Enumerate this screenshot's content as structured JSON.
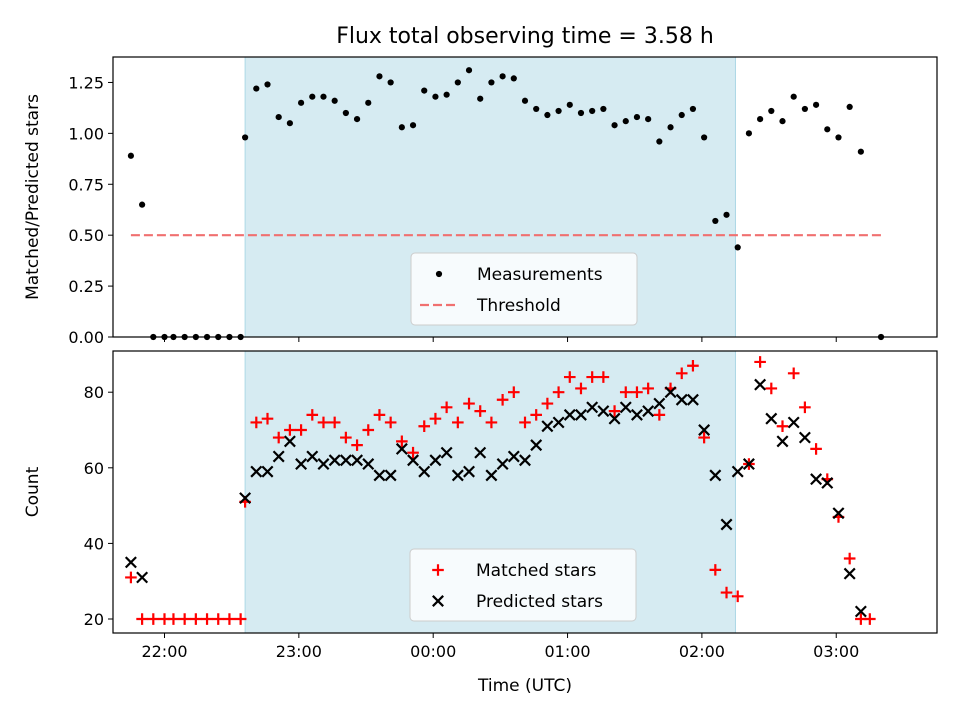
{
  "chart_data": [
    {
      "type": "scatter",
      "title": "Flux total observing time = 3.58 h",
      "ylabel": "Matched/Predicted stars",
      "xlabel": "",
      "ylim": [
        0,
        1.375
      ],
      "yticks": [
        "0.00",
        "0.25",
        "0.50",
        "0.75",
        "1.00",
        "1.25"
      ],
      "grid": false,
      "legend_position": "bottom-center",
      "shaded_span": [
        "22:36",
        "02:15"
      ],
      "series": [
        {
          "name": "Measurements",
          "marker": "dot",
          "color": "#000000",
          "points": [
            [
              "21:45",
              0.89
            ],
            [
              "21:50",
              0.65
            ],
            [
              "21:55",
              0.0
            ],
            [
              "22:00",
              0.0
            ],
            [
              "22:04",
              0.0
            ],
            [
              "22:09",
              0.0
            ],
            [
              "22:14",
              0.0
            ],
            [
              "22:19",
              0.0
            ],
            [
              "22:24",
              0.0
            ],
            [
              "22:29",
              0.0
            ],
            [
              "22:34",
              0.0
            ],
            [
              "22:36",
              0.98
            ],
            [
              "22:41",
              1.22
            ],
            [
              "22:46",
              1.24
            ],
            [
              "22:51",
              1.08
            ],
            [
              "22:56",
              1.05
            ],
            [
              "23:01",
              1.15
            ],
            [
              "23:06",
              1.18
            ],
            [
              "23:11",
              1.18
            ],
            [
              "23:16",
              1.16
            ],
            [
              "23:21",
              1.1
            ],
            [
              "23:26",
              1.07
            ],
            [
              "23:31",
              1.15
            ],
            [
              "23:36",
              1.28
            ],
            [
              "23:41",
              1.25
            ],
            [
              "23:46",
              1.03
            ],
            [
              "23:51",
              1.04
            ],
            [
              "23:56",
              1.21
            ],
            [
              "00:01",
              1.18
            ],
            [
              "00:06",
              1.19
            ],
            [
              "00:11",
              1.25
            ],
            [
              "00:16",
              1.31
            ],
            [
              "00:21",
              1.17
            ],
            [
              "00:26",
              1.25
            ],
            [
              "00:31",
              1.28
            ],
            [
              "00:36",
              1.27
            ],
            [
              "00:41",
              1.16
            ],
            [
              "00:46",
              1.12
            ],
            [
              "00:51",
              1.09
            ],
            [
              "00:56",
              1.11
            ],
            [
              "01:01",
              1.14
            ],
            [
              "01:06",
              1.1
            ],
            [
              "01:11",
              1.11
            ],
            [
              "01:16",
              1.12
            ],
            [
              "01:21",
              1.04
            ],
            [
              "01:26",
              1.06
            ],
            [
              "01:31",
              1.08
            ],
            [
              "01:36",
              1.07
            ],
            [
              "01:41",
              0.96
            ],
            [
              "01:46",
              1.03
            ],
            [
              "01:51",
              1.09
            ],
            [
              "01:56",
              1.12
            ],
            [
              "02:01",
              0.98
            ],
            [
              "02:06",
              0.57
            ],
            [
              "02:11",
              0.6
            ],
            [
              "02:16",
              0.44
            ],
            [
              "02:21",
              1.0
            ],
            [
              "02:26",
              1.07
            ],
            [
              "02:31",
              1.11
            ],
            [
              "02:36",
              1.06
            ],
            [
              "02:41",
              1.18
            ],
            [
              "02:46",
              1.12
            ],
            [
              "02:51",
              1.14
            ],
            [
              "02:56",
              1.02
            ],
            [
              "03:01",
              0.98
            ],
            [
              "03:06",
              1.13
            ],
            [
              "03:11",
              0.91
            ],
            [
              "03:20",
              0.0
            ]
          ]
        },
        {
          "name": "Threshold",
          "line": "dashed",
          "color": "#f07070",
          "points": [
            [
              "21:45",
              0.5
            ],
            [
              "03:20",
              0.5
            ]
          ]
        }
      ]
    },
    {
      "type": "scatter",
      "title": "",
      "xlabel": "Time (UTC)",
      "ylabel": "Count",
      "ylim": [
        16.3,
        90.9
      ],
      "yticks": [
        "20",
        "40",
        "60",
        "80"
      ],
      "xticks": [
        "22:00",
        "23:00",
        "00:00",
        "01:00",
        "02:00",
        "03:00"
      ],
      "grid": false,
      "legend_position": "bottom-center",
      "shaded_span": [
        "22:36",
        "02:15"
      ],
      "series": [
        {
          "name": "Matched stars",
          "marker": "plus",
          "color": "#ff0000",
          "points": [
            [
              "21:45",
              31
            ],
            [
              "21:50",
              20
            ],
            [
              "21:55",
              20
            ],
            [
              "22:00",
              20
            ],
            [
              "22:04",
              20
            ],
            [
              "22:09",
              20
            ],
            [
              "22:14",
              20
            ],
            [
              "22:19",
              20
            ],
            [
              "22:24",
              20
            ],
            [
              "22:29",
              20
            ],
            [
              "22:34",
              20
            ],
            [
              "22:36",
              51
            ],
            [
              "22:41",
              72
            ],
            [
              "22:46",
              73
            ],
            [
              "22:51",
              68
            ],
            [
              "22:56",
              70
            ],
            [
              "23:01",
              70
            ],
            [
              "23:06",
              74
            ],
            [
              "23:11",
              72
            ],
            [
              "23:16",
              72
            ],
            [
              "23:21",
              68
            ],
            [
              "23:26",
              66
            ],
            [
              "23:31",
              70
            ],
            [
              "23:36",
              74
            ],
            [
              "23:41",
              72
            ],
            [
              "23:46",
              67
            ],
            [
              "23:51",
              64
            ],
            [
              "23:56",
              71
            ],
            [
              "00:01",
              73
            ],
            [
              "00:06",
              76
            ],
            [
              "00:11",
              72
            ],
            [
              "00:16",
              77
            ],
            [
              "00:21",
              75
            ],
            [
              "00:26",
              72
            ],
            [
              "00:31",
              78
            ],
            [
              "00:36",
              80
            ],
            [
              "00:41",
              72
            ],
            [
              "00:46",
              74
            ],
            [
              "00:51",
              77
            ],
            [
              "00:56",
              80
            ],
            [
              "01:01",
              84
            ],
            [
              "01:06",
              81
            ],
            [
              "01:11",
              84
            ],
            [
              "01:16",
              84
            ],
            [
              "01:21",
              75
            ],
            [
              "01:26",
              80
            ],
            [
              "01:31",
              80
            ],
            [
              "01:36",
              81
            ],
            [
              "01:41",
              74
            ],
            [
              "01:46",
              81
            ],
            [
              "01:51",
              85
            ],
            [
              "01:56",
              87
            ],
            [
              "02:01",
              68
            ],
            [
              "02:06",
              33
            ],
            [
              "02:11",
              27
            ],
            [
              "02:16",
              26
            ],
            [
              "02:21",
              61
            ],
            [
              "02:26",
              88
            ],
            [
              "02:31",
              81
            ],
            [
              "02:36",
              71
            ],
            [
              "02:41",
              85
            ],
            [
              "02:46",
              76
            ],
            [
              "02:51",
              65
            ],
            [
              "02:56",
              57
            ],
            [
              "03:01",
              47
            ],
            [
              "03:06",
              36
            ],
            [
              "03:11",
              20
            ],
            [
              "03:15",
              20
            ]
          ]
        },
        {
          "name": "Predicted stars",
          "marker": "x",
          "color": "#000000",
          "points": [
            [
              "21:45",
              35
            ],
            [
              "21:50",
              31
            ],
            [
              "22:36",
              52
            ],
            [
              "22:41",
              59
            ],
            [
              "22:46",
              59
            ],
            [
              "22:51",
              63
            ],
            [
              "22:56",
              67
            ],
            [
              "23:01",
              61
            ],
            [
              "23:06",
              63
            ],
            [
              "23:11",
              61
            ],
            [
              "23:16",
              62
            ],
            [
              "23:21",
              62
            ],
            [
              "23:26",
              62
            ],
            [
              "23:31",
              61
            ],
            [
              "23:36",
              58
            ],
            [
              "23:41",
              58
            ],
            [
              "23:46",
              65
            ],
            [
              "23:51",
              62
            ],
            [
              "23:56",
              59
            ],
            [
              "00:01",
              62
            ],
            [
              "00:06",
              64
            ],
            [
              "00:11",
              58
            ],
            [
              "00:16",
              59
            ],
            [
              "00:21",
              64
            ],
            [
              "00:26",
              58
            ],
            [
              "00:31",
              61
            ],
            [
              "00:36",
              63
            ],
            [
              "00:41",
              62
            ],
            [
              "00:46",
              66
            ],
            [
              "00:51",
              71
            ],
            [
              "00:56",
              72
            ],
            [
              "01:01",
              74
            ],
            [
              "01:06",
              74
            ],
            [
              "01:11",
              76
            ],
            [
              "01:16",
              75
            ],
            [
              "01:21",
              73
            ],
            [
              "01:26",
              76
            ],
            [
              "01:31",
              74
            ],
            [
              "01:36",
              75
            ],
            [
              "01:41",
              77
            ],
            [
              "01:46",
              80
            ],
            [
              "01:51",
              78
            ],
            [
              "01:56",
              78
            ],
            [
              "02:01",
              70
            ],
            [
              "02:06",
              58
            ],
            [
              "02:11",
              45
            ],
            [
              "02:16",
              59
            ],
            [
              "02:21",
              61
            ],
            [
              "02:26",
              82
            ],
            [
              "02:31",
              73
            ],
            [
              "02:36",
              67
            ],
            [
              "02:41",
              72
            ],
            [
              "02:46",
              68
            ],
            [
              "02:51",
              57
            ],
            [
              "02:56",
              56
            ],
            [
              "03:01",
              48
            ],
            [
              "03:06",
              32
            ],
            [
              "03:11",
              22
            ]
          ]
        }
      ]
    }
  ]
}
